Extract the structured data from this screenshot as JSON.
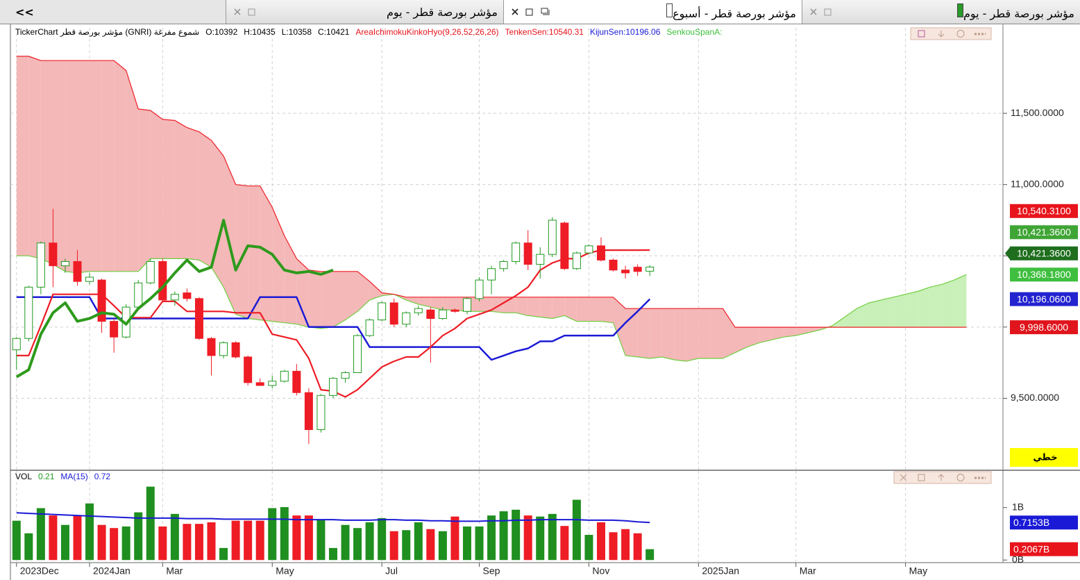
{
  "nav": "<<",
  "tabs": [
    {
      "title": "مؤشر بورصة قطر - يوم",
      "active": false
    },
    {
      "title": "مؤشر بورصة قطر - أسبوع",
      "active": true
    },
    {
      "title": "مؤشر بورصة قطر - يوم",
      "active": false
    }
  ],
  "info": [
    {
      "text": "TickerChart مؤشر بورصة قطر (GNRI) شموع مفرغة",
      "color": "#000"
    },
    {
      "text": "O:10392",
      "color": "#000"
    },
    {
      "text": "H:10435",
      "color": "#000"
    },
    {
      "text": "L:10358",
      "color": "#000"
    },
    {
      "text": "C:10421",
      "color": "#000"
    },
    {
      "text": "AreaIchimokuKinkoHyo(9,26,52,26,26)",
      "color": "#e8141c"
    },
    {
      "text": "TenkenSen:10540.31",
      "color": "#e8141c"
    },
    {
      "text": "KijunSen:10196.06",
      "color": "#1a1ad6"
    },
    {
      "text": "SenkouSpanA:",
      "color": "#3cc03c"
    }
  ],
  "chart_data": [
    {
      "type": "candlestick",
      "open": [
        9840,
        9920,
        10280,
        10590,
        10430,
        10460,
        10320,
        10330,
        10040,
        9930,
        10140,
        10310,
        10460,
        10190,
        10240,
        10200,
        9920,
        9800,
        9890,
        9790,
        9610,
        9590,
        9620,
        9690,
        9540,
        9280,
        9520,
        9640,
        9680,
        9940,
        10050,
        10170,
        10020,
        10100,
        10120,
        10060,
        10120,
        10110,
        10200,
        10330,
        10410,
        10460,
        10590,
        10440,
        10510,
        10730,
        10410,
        10520,
        10570,
        10470,
        10400,
        10420,
        10392
      ],
      "high": [
        9930,
        10290,
        10600,
        10830,
        10480,
        10540,
        10380,
        10340,
        10060,
        10160,
        10330,
        10480,
        10480,
        10250,
        10270,
        10210,
        9930,
        9900,
        9900,
        9800,
        9640,
        9660,
        9700,
        9740,
        9570,
        9530,
        9650,
        9690,
        9950,
        10060,
        10180,
        10200,
        10110,
        10150,
        10140,
        10140,
        10130,
        10210,
        10350,
        10430,
        10470,
        10600,
        10680,
        10560,
        10770,
        10740,
        10530,
        10580,
        10630,
        10480,
        10430,
        10440,
        10435
      ],
      "low": [
        9700,
        9900,
        10230,
        10280,
        10380,
        10290,
        10300,
        9960,
        9820,
        9920,
        10130,
        10300,
        10180,
        10150,
        10180,
        9910,
        9660,
        9780,
        9780,
        9590,
        9590,
        9570,
        9610,
        9520,
        9180,
        9260,
        9500,
        9610,
        9680,
        9930,
        10040,
        10000,
        10000,
        10080,
        9750,
        10050,
        10100,
        10090,
        10180,
        10230,
        10390,
        10440,
        10400,
        10340,
        10490,
        10400,
        10400,
        10510,
        10460,
        10390,
        10340,
        10360,
        10358
      ],
      "close": [
        9920,
        10280,
        10590,
        10430,
        10460,
        10320,
        10350,
        10040,
        9930,
        10140,
        10310,
        10460,
        10190,
        10230,
        10200,
        9920,
        9800,
        9890,
        9790,
        9610,
        9590,
        9620,
        9690,
        9540,
        9280,
        9520,
        9640,
        9680,
        9940,
        10050,
        10170,
        10020,
        10100,
        10130,
        10060,
        10120,
        10110,
        10200,
        10330,
        10410,
        10460,
        10590,
        10440,
        10510,
        10750,
        10410,
        10520,
        10570,
        10470,
        10400,
        10380,
        10390,
        10421
      ],
      "up_color": "#1f9a1f",
      "down_color": "#ee1c25",
      "tenkan": {
        "color": "#ee1c25",
        "values": [
          9800,
          9800,
          10010,
          10230,
          10230,
          10230,
          10230,
          10230,
          10150,
          10066,
          10066,
          10066,
          10180,
          10180,
          10110,
          10110,
          10110,
          10110,
          10100,
          10100,
          10100,
          9950,
          9930,
          9910,
          9780,
          9560,
          9550,
          9510,
          9560,
          9640,
          9720,
          9760,
          9790,
          9790,
          9860,
          9940,
          9990,
          10060,
          10090,
          10120,
          10170,
          10220,
          10280,
          10400,
          10450,
          10480,
          10480,
          10520,
          10540,
          10540,
          10540,
          10540,
          10540.31,
          null,
          null,
          null,
          null,
          null,
          null,
          null,
          null,
          null,
          null,
          null,
          null,
          null,
          null,
          null,
          null,
          null,
          null,
          null,
          null,
          null,
          null,
          null,
          null,
          null,
          null
        ]
      },
      "kijun": {
        "color": "#1a1ad6",
        "values": [
          10210,
          10210,
          10210,
          10210,
          10210,
          10210,
          10210,
          10060,
          10060,
          10060,
          10060,
          10060,
          10060,
          10060,
          10060,
          10060,
          10060,
          10060,
          10060,
          10060,
          10210,
          10210,
          10210,
          10210,
          10000,
          10000,
          10000,
          10000,
          10000,
          9860,
          9860,
          9860,
          9860,
          9860,
          9860,
          9860,
          9860,
          9860,
          9860,
          9770,
          9800,
          9830,
          9850,
          9900,
          9900,
          9940,
          9940,
          9940,
          9940,
          9940,
          10030,
          10110,
          10196.06,
          null,
          null,
          null,
          null,
          null,
          null,
          null,
          null,
          null,
          null,
          null,
          null,
          null,
          null,
          null,
          null,
          null,
          null,
          null,
          null,
          null,
          null,
          null,
          null,
          null,
          null
        ]
      },
      "chikou": {
        "color": "#2e9a1c",
        "values": [
          9650,
          9700,
          9950,
          10100,
          10170,
          10040,
          10060,
          10100,
          10090,
          10020,
          10130,
          10200,
          10280,
          10380,
          10470,
          10390,
          10420,
          10750,
          10400,
          10570,
          10560,
          10510,
          10400,
          10380,
          10390,
          10370,
          10400,
          null,
          null,
          null,
          null,
          null,
          null,
          null,
          null,
          null,
          null,
          null,
          null,
          null,
          null,
          null,
          null,
          null,
          null,
          null,
          null,
          null,
          null,
          null,
          null,
          null,
          null,
          null,
          null,
          null,
          null,
          null,
          null,
          null,
          null,
          null,
          null,
          null,
          null,
          null,
          null,
          null,
          null,
          null,
          null,
          null,
          null,
          null,
          null,
          null,
          null,
          null,
          null
        ]
      },
      "senkou_a": {
        "color": "#6fcf40",
        "values": [
          10500,
          10500,
          10480,
          10440,
          10390,
          10380,
          10390,
          10390,
          10390,
          10390,
          10390,
          10480,
          10480,
          10480,
          10480,
          10470,
          10420,
          10280,
          10090,
          10060,
          10050,
          10040,
          10030,
          10020,
          10000,
          9990,
          10000,
          10050,
          10110,
          10190,
          10220,
          10230,
          10190,
          10160,
          10140,
          10120,
          10120,
          10110,
          10110,
          10110,
          10100,
          10100,
          10080,
          10070,
          10060,
          10080,
          10040,
          10040,
          10040,
          10030,
          9800,
          9790,
          9780,
          9790,
          9770,
          9760,
          9780,
          9780,
          9780,
          9820,
          9860,
          9890,
          9910,
          9930,
          9940,
          9960,
          9980,
          10010,
          10070,
          10130,
          10170,
          10190,
          10210,
          10230,
          10250,
          10280,
          10300,
          10330,
          10368.18
        ]
      },
      "senkou_b": {
        "color": "#ee1c25",
        "values": [
          11900,
          11900,
          11870,
          11870,
          11870,
          11870,
          11870,
          11870,
          11870,
          11800,
          11530,
          11520,
          11457,
          11450,
          11400,
          11370,
          11310,
          11200,
          11000,
          10990,
          10990,
          10840,
          10640,
          10480,
          10400,
          10390,
          10390,
          10390,
          10390,
          10320,
          10240,
          10230,
          10210,
          10210,
          10210,
          10210,
          10210,
          10210,
          10210,
          10210,
          10210,
          10210,
          10210,
          10210,
          10210,
          10210,
          10210,
          10210,
          10210,
          10210,
          10130,
          10130,
          10130,
          10130,
          10130,
          10130,
          10130,
          10130,
          10130,
          9998.6,
          9998.6,
          9998.6,
          9998.6,
          9998.6,
          9998.6,
          9998.6,
          9998.6,
          9998.6,
          9998.6,
          9998.6,
          9998.6,
          9998.6,
          9998.6,
          9998.6,
          9998.6,
          9998.6,
          9998.6,
          9998.6,
          9998.6
        ]
      },
      "cloud_up_color": "#c9f0b8",
      "cloud_down_color": "#f4b8b8",
      "xlim": [
        -0.5,
        81
      ],
      "xticks": [
        {
          "value": 0,
          "label": "2023Dec"
        },
        {
          "value": 6,
          "label": "2024Jan"
        },
        {
          "value": 12,
          "label": "Mar"
        },
        {
          "value": 21,
          "label": "May"
        },
        {
          "value": 30,
          "label": "Jul"
        },
        {
          "value": 38,
          "label": "Sep"
        },
        {
          "value": 47,
          "label": "Nov"
        },
        {
          "value": 56,
          "label": "2025Jan"
        },
        {
          "value": 64,
          "label": "Mar"
        },
        {
          "value": 73,
          "label": "May"
        }
      ],
      "ylim": [
        9000,
        12100
      ],
      "yticks": [
        {
          "value": 9500,
          "label": "9,500.0000"
        },
        {
          "value": 10000,
          "label": "10,000.0000"
        },
        {
          "value": 10500,
          "label": "10,500.0000"
        },
        {
          "value": 11000,
          "label": "11,000.0000"
        },
        {
          "value": 11500,
          "label": "11,500.0000"
        }
      ],
      "grid": true,
      "price_labels": [
        {
          "value": 10540.31,
          "label": "10,540.3100",
          "color": "#e8141c"
        },
        {
          "value": 10421.36,
          "label": "10,421.3600",
          "color": "#3fa535"
        },
        {
          "value": 10421.36,
          "label": "10,421.3600",
          "color": "#1e6e1e",
          "pointer": true
        },
        {
          "value": 10368.18,
          "label": "10,368.1800",
          "color": "#3fbf3f"
        },
        {
          "value": 10196.06,
          "label": "10,196.0600",
          "color": "#2323d0"
        },
        {
          "value": 9998.6,
          "label": "9,998.6000",
          "color": "#e0141c"
        }
      ],
      "scale_mode": "خطي"
    },
    {
      "type": "bar",
      "values": [
        0.75,
        0.51,
        0.99,
        0.85,
        0.67,
        0.85,
        1.08,
        0.67,
        0.61,
        0.64,
        0.91,
        1.4,
        0.64,
        0.88,
        0.69,
        0.69,
        0.72,
        0.23,
        0.75,
        0.75,
        0.75,
        0.99,
        1.01,
        0.85,
        0.85,
        0.77,
        0.23,
        0.67,
        0.61,
        0.72,
        0.8,
        0.55,
        0.57,
        0.72,
        0.59,
        0.55,
        0.83,
        0.64,
        0.64,
        0.85,
        0.93,
        0.96,
        0.85,
        0.83,
        0.88,
        0.65,
        1.15,
        0.48,
        0.72,
        0.53,
        0.59,
        0.51,
        0.2067
      ],
      "up_color": "#1f8f1f",
      "down_color": "#ee1c25",
      "ma": {
        "color": "#1a1ad6",
        "values": [
          0.9,
          0.89,
          0.88,
          0.87,
          0.86,
          0.85,
          0.84,
          0.83,
          0.82,
          0.81,
          0.8,
          0.8,
          0.8,
          0.8,
          0.79,
          0.79,
          0.79,
          0.78,
          0.78,
          0.78,
          0.78,
          0.78,
          0.78,
          0.77,
          0.77,
          0.77,
          0.77,
          0.76,
          0.76,
          0.76,
          0.77,
          0.77,
          0.76,
          0.76,
          0.75,
          0.75,
          0.74,
          0.74,
          0.74,
          0.75,
          0.75,
          0.76,
          0.76,
          0.77,
          0.77,
          0.77,
          0.77,
          0.76,
          0.76,
          0.76,
          0.75,
          0.73,
          0.7153
        ]
      },
      "ylim": [
        -0.05,
        1.7
      ],
      "yticks": [
        {
          "value": 1,
          "label": "1B"
        },
        {
          "value": 0,
          "label": "0B"
        }
      ],
      "value_labels": [
        {
          "value": 0.7153,
          "label": "0.7153B",
          "color": "#1a1ad6"
        },
        {
          "value": 0.2067,
          "label": "0.2067B",
          "color": "#e8141c"
        }
      ],
      "info": [
        {
          "text": "VOL",
          "color": "#000"
        },
        {
          "text": "0.21",
          "color": "#1f9a1f"
        },
        {
          "text": "MA(15)",
          "color": "#1a1ad6"
        },
        {
          "text": "0.72",
          "color": "#1a1ad6"
        }
      ]
    }
  ]
}
